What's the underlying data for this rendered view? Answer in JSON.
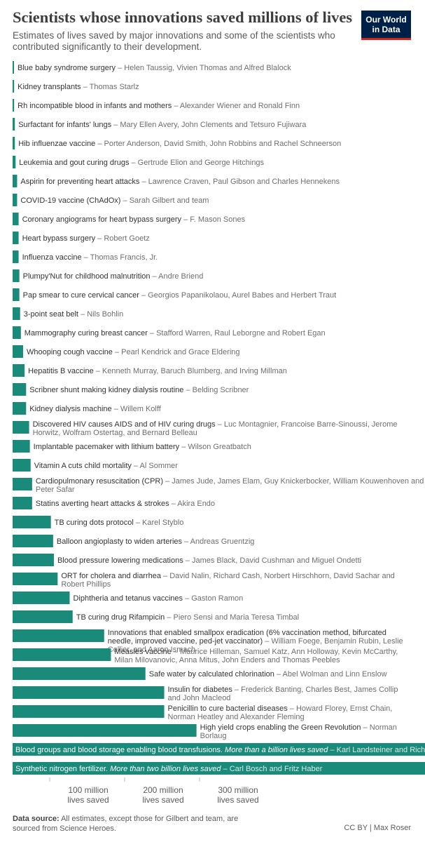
{
  "header": {
    "title": "Scientists whose innovations saved millions of lives",
    "subtitle": "Estimates of lives saved by major innovations and some of the scientists who contributed significantly to their development.",
    "logo_line1": "Our World",
    "logo_line2": "in Data"
  },
  "colors": {
    "bar": "#1a8a7a",
    "logo_bg": "#002147",
    "logo_accent": "#ce261e"
  },
  "chart_data": {
    "type": "bar",
    "orientation": "horizontal",
    "x_ticks": [
      {
        "value": 100,
        "line1": "100 million",
        "line2": "lives saved"
      },
      {
        "value": 200,
        "line1": "200 million",
        "line2": "lives saved"
      },
      {
        "value": 300,
        "line1": "300 million",
        "line2": "lives saved"
      }
    ],
    "x_unit": "million lives saved",
    "items": [
      {
        "innovation": "Blue baby syndrome surgery",
        "scientists": "Helen Taussig, Vivien Thomas and Alfred Blalock",
        "value": 1.5
      },
      {
        "innovation": "Kidney transplants",
        "scientists": "Thomas Starlz",
        "value": 2
      },
      {
        "innovation": "Rh incompatible blood in infants and mothers",
        "scientists": "Alexander Wiener and Ronald Finn",
        "value": 2
      },
      {
        "innovation": "Surfactant for infants' lungs",
        "scientists": "Mary Ellen Avery, John Clements and Tetsuro Fujiwara",
        "value": 3
      },
      {
        "innovation": "Hib influenzae vaccine",
        "scientists": "Porter Anderson, David Smith, John Robbins and Rachel Schneerson",
        "value": 3
      },
      {
        "innovation": "Leukemia and gout curing drugs",
        "scientists": "Gertrude Elion and George Hitchings",
        "value": 4
      },
      {
        "innovation": "Aspirin for preventing heart attacks",
        "scientists": "Lawrence Craven, Paul Gibson and Charles Hennekens",
        "value": 6
      },
      {
        "innovation": "COVID-19 vaccine (ChAdOx)",
        "scientists": "Sarah Gilbert and team",
        "value": 6
      },
      {
        "innovation": "Coronary angiograms for heart bypass surgery",
        "scientists": "F. Mason Sones",
        "value": 8
      },
      {
        "innovation": "Heart bypass surgery",
        "scientists": "Robert Goetz",
        "value": 8
      },
      {
        "innovation": "Influenza vaccine",
        "scientists": "Thomas Francis, Jr.",
        "value": 8
      },
      {
        "innovation": "Plumpy'Nut for childhood malnutrition",
        "scientists": "Andre Briend",
        "value": 9
      },
      {
        "innovation": "Pap smear to cure cervical cancer",
        "scientists": "Georgios Papanikolaou, Aurel Babes and Herbert Traut",
        "value": 9
      },
      {
        "innovation": "3-point seat belt",
        "scientists": "Nils Bohlin",
        "value": 10
      },
      {
        "innovation": "Mammography curing breast cancer",
        "scientists": "Stafford Warren, Raul Leborgne and Robert Egan",
        "value": 11
      },
      {
        "innovation": "Whooping cough vaccine",
        "scientists": "Pearl Kendrick and Grace Eldering",
        "value": 14
      },
      {
        "innovation": "Hepatitis B vaccine",
        "scientists": "Kenneth Murray, Baruch Blumberg, and Irving Millman",
        "value": 16
      },
      {
        "innovation": "Scribner shunt making kidney dialysis routine",
        "scientists": "Belding Scribner",
        "value": 18
      },
      {
        "innovation": "Kidney dialysis machine",
        "scientists": "Willem Kolff",
        "value": 18
      },
      {
        "innovation": "Discovered HIV causes AIDS and of HIV curing drugs",
        "scientists": "Luc Montagnier, Francoise Barre-Sinoussi, Jerome Horwitz, Wolfram Ostertag, and Bernard Belleau",
        "value": 22
      },
      {
        "innovation": "Implantable pacemaker with lithium battery",
        "scientists": "Wilson Greatbatch",
        "value": 23
      },
      {
        "innovation": "Vitamin A cuts child mortality",
        "scientists": "Al Sommer",
        "value": 24
      },
      {
        "innovation": "Cardiopulmonary resuscitation (CPR)",
        "scientists": "James Jude, James Elam, Guy Knickerbocker, William Kouwenhoven and Peter Safar",
        "value": 26
      },
      {
        "innovation": "Statins averting heart attacks & strokes",
        "scientists": "Akira Endo",
        "value": 26
      },
      {
        "innovation": "TB curing dots protocol",
        "scientists": "Karel Styblo",
        "value": 51
      },
      {
        "innovation": "Balloon angioplasty to widen arteries",
        "scientists": "Andreas Gruentzig",
        "value": 54
      },
      {
        "innovation": "Blood pressure lowering medications",
        "scientists": "James Black, David Cushman and Miguel Ondetti",
        "value": 55
      },
      {
        "innovation": "ORT for cholera and diarrhea",
        "scientists": "David Nalin, Richard Cash, Norbert Hirschhorn, David Sachar and Robert Phillips",
        "value": 60
      },
      {
        "innovation": "Diphtheria and tetanus vaccines",
        "scientists": "Gaston Ramon",
        "value": 76
      },
      {
        "innovation": "TB curing drug Rifampicin",
        "scientists": "Piero Sensi and Maria Teresa Timbal",
        "value": 80
      },
      {
        "innovation": "Innovations that enabled smallpox eradication (6% vaccination method, bifurcated needle, improved vaccine, ped-jet vaccinator)",
        "scientists": "William Foege, Benjamin Rubin, Leslie Collier, and Aaron Ismach",
        "value": 122
      },
      {
        "innovation": "Measles vaccine",
        "scientists": "Maurice Hilleman, Samuel Katz, Ann Holloway, Kevin McCarthy, Milan Milovanovic, Anna Mitus, John Enders and Thomas Peebles",
        "value": 131
      },
      {
        "innovation": "Safe water by calculated chlorination",
        "scientists": "Abel Wolman and Linn Enslow",
        "value": 177
      },
      {
        "innovation": "Insulin for diabetes",
        "scientists": "Frederick Banting, Charles Best, James Collip and John Macleod",
        "value": 202
      },
      {
        "innovation": "Penicillin to cure bacterial diseases",
        "scientists": "Howard Florey, Ernst Chain, Norman Heatley and Alexander Fleming",
        "value": 202
      },
      {
        "innovation": "High yield crops enabling the Green Revolution",
        "scientists": "Norman Borlaug",
        "value": 245
      },
      {
        "innovation": "Blood groups and blood storage enabling blood transfusions.",
        "note": "More than a billion lives saved",
        "scientists": "Karl Landsteiner and Richard Lewisohn",
        "value": 1000
      },
      {
        "innovation": "Synthetic nitrogen fertilizer.",
        "note": "More than two billion lives saved",
        "scientists": "Carl Bosch and Fritz Haber",
        "value": 2000
      }
    ]
  },
  "footer": {
    "source_label": "Data source:",
    "source_text": "All estimates, except those for Gilbert and team, are sourced from Science Heroes.",
    "license": "CC BY | Max Roser"
  }
}
